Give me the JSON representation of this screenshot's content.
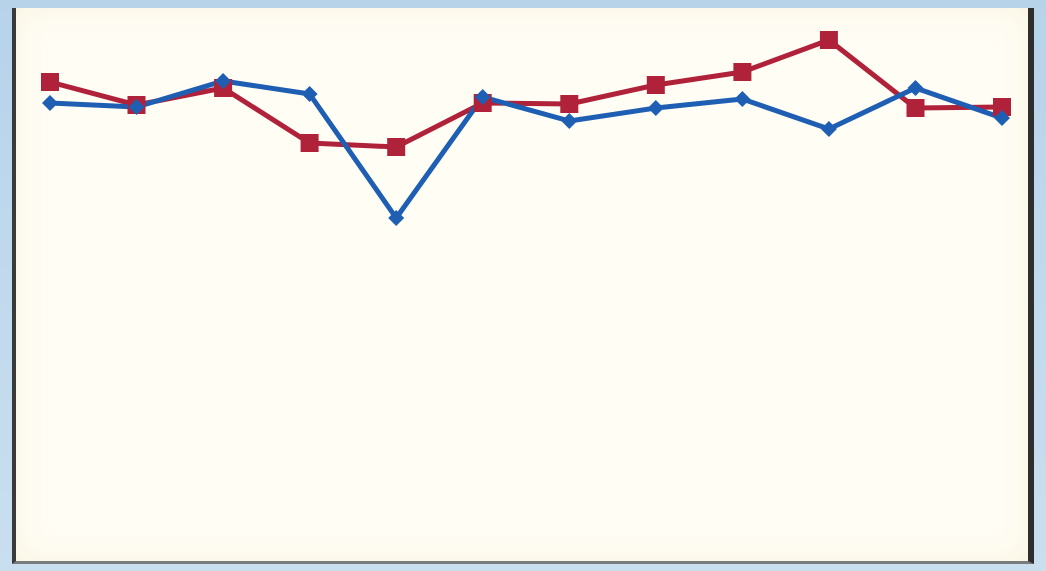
{
  "chart_data": {
    "type": "line",
    "x": [
      1,
      2,
      3,
      4,
      5,
      6,
      7,
      8,
      9,
      10,
      11,
      12
    ],
    "series": [
      {
        "color": "#1f5fb3",
        "marker": "diamond",
        "values": [
          467,
          463,
          489,
          476,
          352,
          473,
          449,
          462,
          471,
          441,
          482,
          452
        ]
      },
      {
        "color": "#b0213a",
        "marker": "square",
        "values": [
          488,
          465,
          482,
          427,
          423,
          467,
          466,
          485,
          498,
          530,
          462,
          463
        ]
      }
    ],
    "ylim": [
      0,
      570
    ],
    "grid": false,
    "legend": "none"
  }
}
